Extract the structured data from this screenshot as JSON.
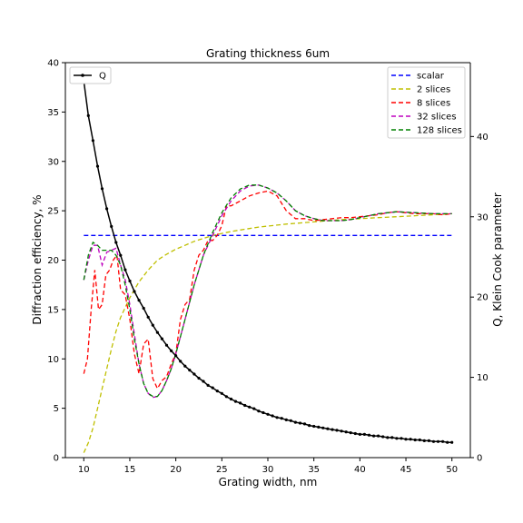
{
  "chart_data": {
    "type": "line",
    "title": "Grating thickness 6um",
    "xlabel": "Grating width, nm",
    "ylabel_left": "Diffraction efficiency, %",
    "ylabel_right": "Q, Klein Cook parameter",
    "xlim": [
      8,
      52
    ],
    "ylim_left": [
      0,
      40
    ],
    "ylim_right": [
      0,
      49.2
    ],
    "x_ticks": [
      10,
      15,
      20,
      25,
      30,
      35,
      40,
      45,
      50
    ],
    "y_ticks_left": [
      0,
      5,
      10,
      15,
      20,
      25,
      30,
      35,
      40
    ],
    "y_ticks_right": [
      0,
      10,
      20,
      30,
      40
    ],
    "grid": false,
    "legend_left": {
      "placement": "top-left",
      "entries": [
        "Q"
      ]
    },
    "legend_right": {
      "placement": "top-right",
      "entries": [
        "scalar",
        "2 slices",
        "8 slices",
        "32 slices",
        "128 slices"
      ]
    },
    "series": [
      {
        "name": "scalar",
        "axis": "left",
        "color": "#0000ff",
        "style": "dashed",
        "x": [
          10,
          50
        ],
        "y": [
          22.5,
          22.5
        ]
      },
      {
        "name": "2 slices",
        "axis": "left",
        "color": "#bfbf00",
        "style": "dashed",
        "x": [
          10,
          10.5,
          11,
          11.5,
          12,
          12.5,
          13,
          13.5,
          14,
          15,
          16,
          17,
          18,
          19,
          20,
          21,
          22,
          23,
          24,
          25,
          26,
          27,
          28,
          29,
          30,
          32,
          34,
          36,
          38,
          40,
          42,
          44,
          46,
          48,
          50
        ],
        "y": [
          0.5,
          1.5,
          3.0,
          5.0,
          7.0,
          9.0,
          11.0,
          12.8,
          14.2,
          16.2,
          17.8,
          19.0,
          20.0,
          20.6,
          21.1,
          21.5,
          21.9,
          22.2,
          22.5,
          22.7,
          22.9,
          23.05,
          23.2,
          23.35,
          23.45,
          23.65,
          23.8,
          23.95,
          24.1,
          24.2,
          24.3,
          24.4,
          24.5,
          24.6,
          24.7
        ]
      },
      {
        "name": "8 slices",
        "axis": "left",
        "color": "#ff0000",
        "style": "dashed",
        "x": [
          10,
          10.4,
          10.8,
          11.2,
          11.6,
          12,
          12.4,
          12.8,
          13.2,
          13.6,
          14,
          14.5,
          15,
          15.5,
          16,
          16.5,
          17,
          17.5,
          18,
          18.5,
          19,
          19.5,
          20,
          20.5,
          21,
          21.5,
          22,
          22.5,
          23,
          23.5,
          24,
          24.5,
          25,
          25.5,
          26,
          27,
          28,
          29,
          30,
          31,
          32,
          33,
          34,
          35,
          36,
          37,
          38,
          39,
          40,
          41,
          42,
          43,
          44,
          45,
          46,
          47,
          48,
          49,
          50
        ],
        "y": [
          8.5,
          10.0,
          15.0,
          19.0,
          15.0,
          15.5,
          18.5,
          19.0,
          20.0,
          20.5,
          17.0,
          16.5,
          14.0,
          10.5,
          8.5,
          11.5,
          12.0,
          8.0,
          7.0,
          7.8,
          8.2,
          9.5,
          10.5,
          14.0,
          15.5,
          16.0,
          19.0,
          20.5,
          21.0,
          22.0,
          22.0,
          22.5,
          23.5,
          25.5,
          25.5,
          26.0,
          26.5,
          26.8,
          27.0,
          26.5,
          25.0,
          24.2,
          24.2,
          24.0,
          24.1,
          24.2,
          24.3,
          24.3,
          24.4,
          24.5,
          24.6,
          24.8,
          24.9,
          24.8,
          24.7,
          24.7,
          24.7,
          24.6,
          24.7
        ]
      },
      {
        "name": "32 slices",
        "axis": "left",
        "color": "#bf00bf",
        "style": "dashed",
        "x": [
          10,
          10.5,
          11,
          11.5,
          12,
          12.5,
          13,
          13.5,
          14,
          14.5,
          15,
          15.5,
          16,
          16.5,
          17,
          17.5,
          18,
          18.5,
          19,
          19.5,
          20,
          21,
          22,
          23,
          24,
          25,
          26,
          27,
          28,
          29,
          30,
          31,
          32,
          33,
          34,
          35,
          36,
          37,
          38,
          39,
          40,
          42,
          44,
          46,
          48,
          50
        ],
        "y": [
          18.0,
          20.0,
          21.5,
          21.5,
          19.5,
          20.8,
          21.0,
          21.2,
          19.5,
          18.0,
          15.5,
          12.5,
          9.5,
          7.5,
          6.5,
          6.1,
          6.2,
          6.8,
          7.8,
          9.0,
          10.5,
          14.0,
          17.5,
          20.5,
          22.5,
          24.5,
          26.0,
          27.0,
          27.5,
          27.6,
          27.3,
          26.8,
          26.0,
          25.0,
          24.5,
          24.2,
          24.0,
          24.0,
          24.0,
          24.1,
          24.3,
          24.7,
          24.9,
          24.8,
          24.7,
          24.7
        ]
      },
      {
        "name": "128 slices",
        "axis": "left",
        "color": "#008000",
        "style": "dashed",
        "x": [
          10,
          10.5,
          11,
          11.5,
          12,
          12.5,
          13,
          13.5,
          14,
          14.5,
          15,
          15.5,
          16,
          16.5,
          17,
          17.5,
          18,
          18.5,
          19,
          19.5,
          20,
          21,
          22,
          23,
          24,
          25,
          26,
          27,
          28,
          29,
          30,
          31,
          32,
          33,
          34,
          35,
          36,
          37,
          38,
          39,
          40,
          42,
          44,
          46,
          48,
          50
        ],
        "y": [
          18.0,
          20.5,
          21.8,
          21.5,
          21.0,
          21.0,
          21.0,
          20.5,
          19.5,
          17.5,
          15.0,
          12.0,
          9.5,
          7.5,
          6.5,
          6.2,
          6.2,
          6.8,
          7.8,
          9.0,
          10.5,
          14.0,
          17.5,
          20.5,
          22.8,
          24.8,
          26.3,
          27.2,
          27.6,
          27.6,
          27.3,
          26.8,
          26.0,
          25.0,
          24.5,
          24.2,
          24.0,
          24.0,
          24.0,
          24.1,
          24.3,
          24.7,
          24.9,
          24.8,
          24.7,
          24.7
        ]
      },
      {
        "name": "Q",
        "axis": "right",
        "color": "#000000",
        "style": "solid-markers",
        "x": [
          10,
          10.5,
          11,
          11.5,
          12,
          12.5,
          13,
          13.5,
          14,
          14.5,
          15,
          15.5,
          16,
          16.5,
          17,
          17.5,
          18,
          18.5,
          19,
          19.5,
          20,
          20.5,
          21,
          21.5,
          22,
          22.5,
          23,
          23.5,
          24,
          24.5,
          25,
          25.5,
          26,
          26.5,
          27,
          27.5,
          28,
          28.5,
          29,
          29.5,
          30,
          30.5,
          31,
          31.5,
          32,
          32.5,
          33,
          33.5,
          34,
          34.5,
          35,
          35.5,
          36,
          36.5,
          37,
          37.5,
          38,
          38.5,
          39,
          39.5,
          40,
          40.5,
          41,
          41.5,
          42,
          42.5,
          43,
          43.5,
          44,
          44.5,
          45,
          45.5,
          46,
          46.5,
          47,
          47.5,
          48,
          48.5,
          49,
          49.5,
          50
        ],
        "y": [
          46.9,
          42.6,
          39.5,
          36.3,
          33.5,
          31.0,
          28.8,
          26.8,
          25.2,
          23.4,
          22.0,
          20.7,
          19.6,
          18.6,
          17.5,
          16.5,
          15.6,
          14.8,
          14.0,
          13.3,
          12.7,
          12.0,
          11.4,
          10.9,
          10.4,
          9.9,
          9.5,
          9.0,
          8.7,
          8.3,
          8.0,
          7.6,
          7.3,
          7.0,
          6.8,
          6.5,
          6.3,
          6.1,
          5.8,
          5.6,
          5.4,
          5.2,
          5.0,
          4.9,
          4.7,
          4.6,
          4.4,
          4.3,
          4.2,
          4.0,
          3.9,
          3.8,
          3.7,
          3.6,
          3.5,
          3.4,
          3.3,
          3.2,
          3.1,
          3.0,
          2.9,
          2.9,
          2.8,
          2.7,
          2.7,
          2.6,
          2.5,
          2.5,
          2.4,
          2.4,
          2.3,
          2.3,
          2.2,
          2.2,
          2.1,
          2.1,
          2.0,
          2.0,
          2.0,
          1.9,
          1.9
        ]
      }
    ]
  }
}
